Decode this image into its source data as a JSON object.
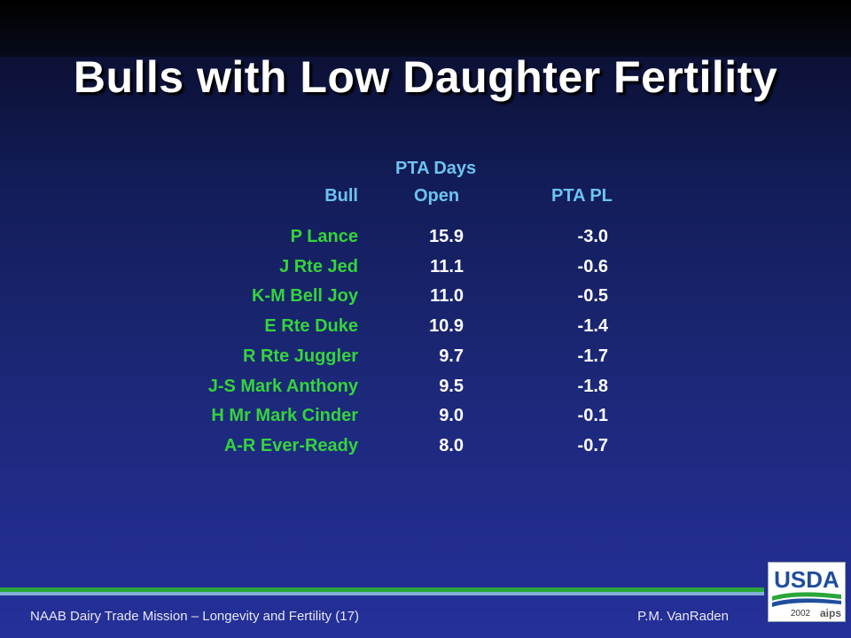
{
  "slide": {
    "title": "Bulls with Low Daughter Fertility"
  },
  "table": {
    "headers": {
      "bull": "Bull",
      "days_open_line1": "PTA Days",
      "days_open_line2": "Open",
      "pta_pl": "PTA PL"
    },
    "rows": [
      {
        "bull": "P Lance",
        "days_open": "15.9",
        "pta_pl": "-3.0"
      },
      {
        "bull": "J Rte Jed",
        "days_open": "11.1",
        "pta_pl": "-0.6"
      },
      {
        "bull": "K-M Bell Joy",
        "days_open": "11.0",
        "pta_pl": "-0.5"
      },
      {
        "bull": "E Rte Duke",
        "days_open": "10.9",
        "pta_pl": "-1.4"
      },
      {
        "bull": "R Rte Juggler",
        "days_open": "9.7",
        "pta_pl": "-1.7"
      },
      {
        "bull": "J-S Mark Anthony",
        "days_open": "9.5",
        "pta_pl": "-1.8"
      },
      {
        "bull": "H Mr Mark Cinder",
        "days_open": "9.0",
        "pta_pl": "-0.1"
      },
      {
        "bull": "A-R Ever-Ready",
        "days_open": "8.0",
        "pta_pl": "-0.7"
      }
    ]
  },
  "footer": {
    "left": "NAAB Dairy  Trade Mission – Longevity and Fertility (17)",
    "right": "P.M. VanRaden"
  },
  "logo": {
    "text": "USDA",
    "year": "2002",
    "mark": "aips"
  },
  "colors": {
    "title": "#ffffff",
    "header": "#6ec3f0",
    "bull_name": "#35d43a",
    "value": "#ffffff",
    "usda_blue": "#1f4e9c",
    "usda_green": "#2aa63a"
  }
}
